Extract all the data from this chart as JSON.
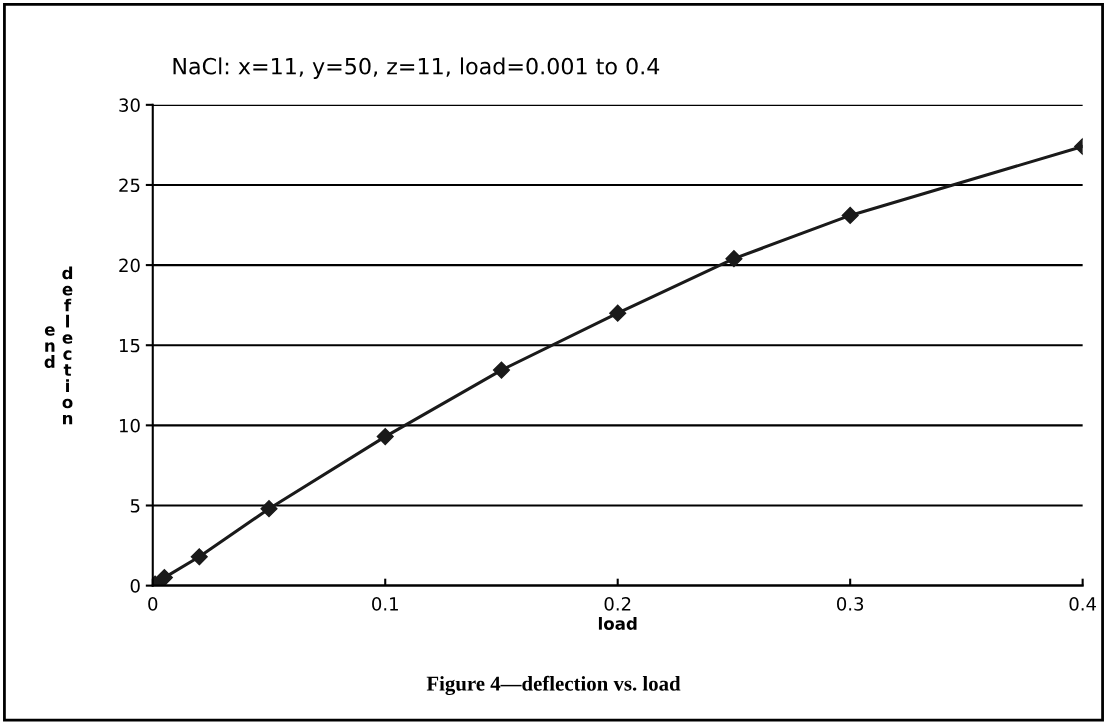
{
  "chart_data": {
    "type": "line",
    "title": "NaCl: x=11, y=50, z=11, load=0.001 to 0.4",
    "xlabel": "load",
    "ylabel": "end deflection",
    "x": [
      0.001,
      0.005,
      0.02,
      0.05,
      0.1,
      0.15,
      0.2,
      0.25,
      0.3,
      0.4
    ],
    "series": [
      {
        "color": "#1a1a1a",
        "values": [
          0.1,
          0.5,
          1.8,
          4.8,
          9.3,
          13.45,
          17.0,
          20.4,
          23.1,
          27.4
        ]
      }
    ],
    "xlim": [
      0,
      0.4
    ],
    "xticks": [
      0,
      0.1,
      0.2,
      0.3,
      0.4
    ],
    "ylim": [
      0,
      30
    ],
    "yticks": [
      0,
      5,
      10,
      15,
      20,
      25,
      30
    ],
    "grid": "y",
    "marker": "diamond",
    "line_style": "solid",
    "legend": false,
    "annotations": [
      "Figure 4—deflection vs. load"
    ]
  }
}
